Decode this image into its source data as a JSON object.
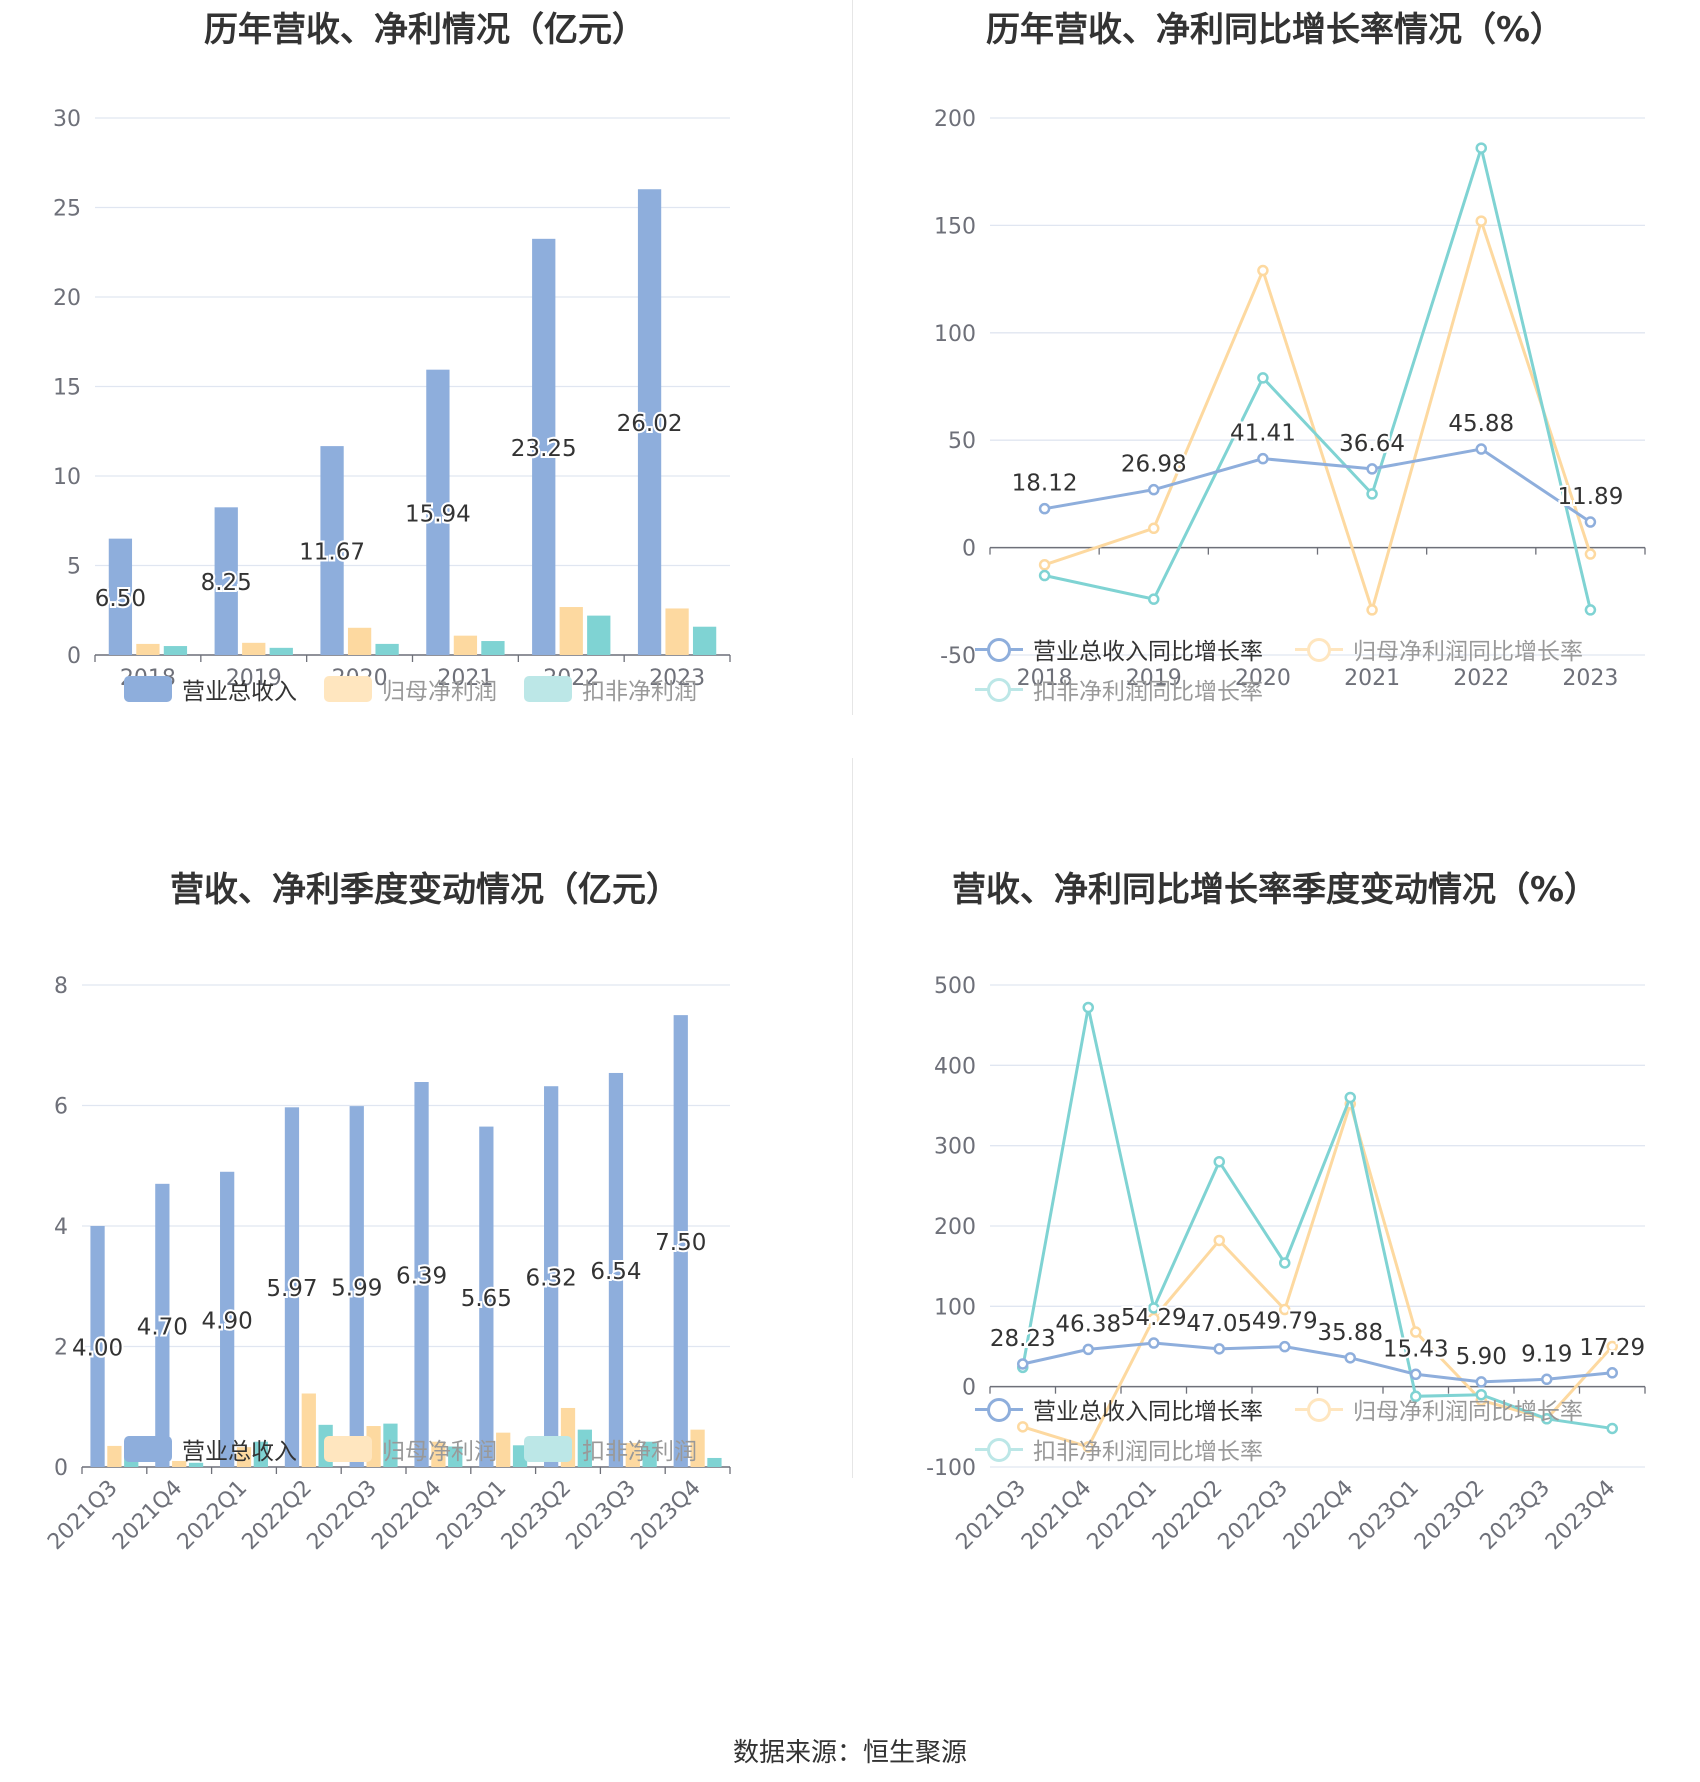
{
  "colors": {
    "revenue": "#8EAEDC",
    "netprofit": "#FDD9A0",
    "deducted": "#7FD3D3",
    "revenue_light": "#8EAEDC",
    "netprofit_light": "#FFE6BF",
    "deducted_light": "#BCE7E7"
  },
  "source": "数据来源：恒生聚源",
  "chart_data": [
    {
      "id": "annual-amount",
      "type": "bar",
      "title": "历年营收、净利情况（亿元）",
      "categories": [
        "2018",
        "2019",
        "2020",
        "2021",
        "2022",
        "2023"
      ],
      "ylim": [
        0,
        30
      ],
      "yticks": [
        0,
        5,
        10,
        15,
        20,
        25,
        30
      ],
      "grid": true,
      "legend_position": "bottom",
      "series": [
        {
          "name": "营业总收入",
          "values": [
            6.5,
            8.25,
            11.67,
            15.94,
            23.25,
            26.02
          ],
          "labels": [
            "6.50",
            "8.25",
            "11.67",
            "15.94",
            "23.25",
            "26.02"
          ]
        },
        {
          "name": "归母净利润",
          "values": [
            0.62,
            0.68,
            1.52,
            1.08,
            2.68,
            2.6
          ]
        },
        {
          "name": "扣非净利润",
          "values": [
            0.5,
            0.4,
            0.62,
            0.78,
            2.2,
            1.58
          ]
        }
      ]
    },
    {
      "id": "annual-growth",
      "type": "line",
      "title": "历年营收、净利同比增长率情况（%）",
      "categories": [
        "2018",
        "2019",
        "2020",
        "2021",
        "2022",
        "2023"
      ],
      "ylim": [
        -50,
        200
      ],
      "yticks": [
        -50,
        0,
        50,
        100,
        150,
        200
      ],
      "grid": true,
      "legend_position": "bottom",
      "series": [
        {
          "name": "营业总收入同比增长率",
          "values": [
            18.12,
            26.98,
            41.41,
            36.64,
            45.88,
            11.89
          ],
          "labels": [
            "18.12",
            "26.98",
            "41.41",
            "36.64",
            "45.88",
            "11.89"
          ]
        },
        {
          "name": "归母净利润同比增长率",
          "values": [
            -8,
            9,
            129,
            -29,
            152,
            -3
          ]
        },
        {
          "name": "扣非净利润同比增长率",
          "values": [
            -13,
            -24,
            79,
            25,
            186,
            -29
          ]
        }
      ]
    },
    {
      "id": "quarterly-amount",
      "type": "bar",
      "title": "营收、净利季度变动情况（亿元）",
      "categories": [
        "2021Q3",
        "2021Q4",
        "2022Q1",
        "2022Q2",
        "2022Q3",
        "2022Q4",
        "2023Q1",
        "2023Q2",
        "2023Q3",
        "2023Q4"
      ],
      "ylim": [
        0,
        8
      ],
      "yticks": [
        0,
        2,
        4,
        6,
        8
      ],
      "grid": true,
      "legend_position": "bottom",
      "series": [
        {
          "name": "营业总收入",
          "values": [
            4.0,
            4.7,
            4.9,
            5.97,
            5.99,
            6.39,
            5.65,
            6.32,
            6.54,
            7.5
          ],
          "labels": [
            "4.00",
            "4.70",
            "4.90",
            "5.97",
            "5.99",
            "6.39",
            "5.65",
            "6.32",
            "6.54",
            "7.50"
          ]
        },
        {
          "name": "归母净利润",
          "values": [
            0.35,
            0.1,
            0.33,
            1.22,
            0.68,
            0.42,
            0.57,
            0.98,
            0.4,
            0.62
          ]
        },
        {
          "name": "扣非净利润",
          "values": [
            0.28,
            0.07,
            0.42,
            0.7,
            0.72,
            0.34,
            0.36,
            0.62,
            0.42,
            0.15
          ]
        }
      ]
    },
    {
      "id": "quarterly-growth",
      "type": "line",
      "title": "营收、净利同比增长率季度变动情况（%）",
      "categories": [
        "2021Q3",
        "2021Q4",
        "2022Q1",
        "2022Q2",
        "2022Q3",
        "2022Q4",
        "2023Q1",
        "2023Q2",
        "2023Q3",
        "2023Q4"
      ],
      "ylim": [
        -100,
        500
      ],
      "yticks": [
        -100,
        0,
        100,
        200,
        300,
        400,
        500
      ],
      "grid": true,
      "legend_position": "bottom",
      "series": [
        {
          "name": "营业总收入同比增长率",
          "values": [
            28.23,
            46.38,
            54.29,
            47.05,
            49.79,
            35.88,
            15.43,
            5.9,
            9.19,
            17.29
          ],
          "labels": [
            "28.23",
            "46.38",
            "54.29",
            "47.05",
            "49.79",
            "35.88",
            "15.43",
            "5.90",
            "9.19",
            "17.29"
          ]
        },
        {
          "name": "归母净利润同比增长率",
          "values": [
            -50,
            -75,
            85,
            182,
            96,
            352,
            68,
            -17,
            -40,
            50
          ]
        },
        {
          "name": "扣非净利润同比增长率",
          "values": [
            24,
            472,
            98,
            280,
            154,
            360,
            -12,
            -10,
            -40,
            -52
          ]
        }
      ]
    }
  ]
}
